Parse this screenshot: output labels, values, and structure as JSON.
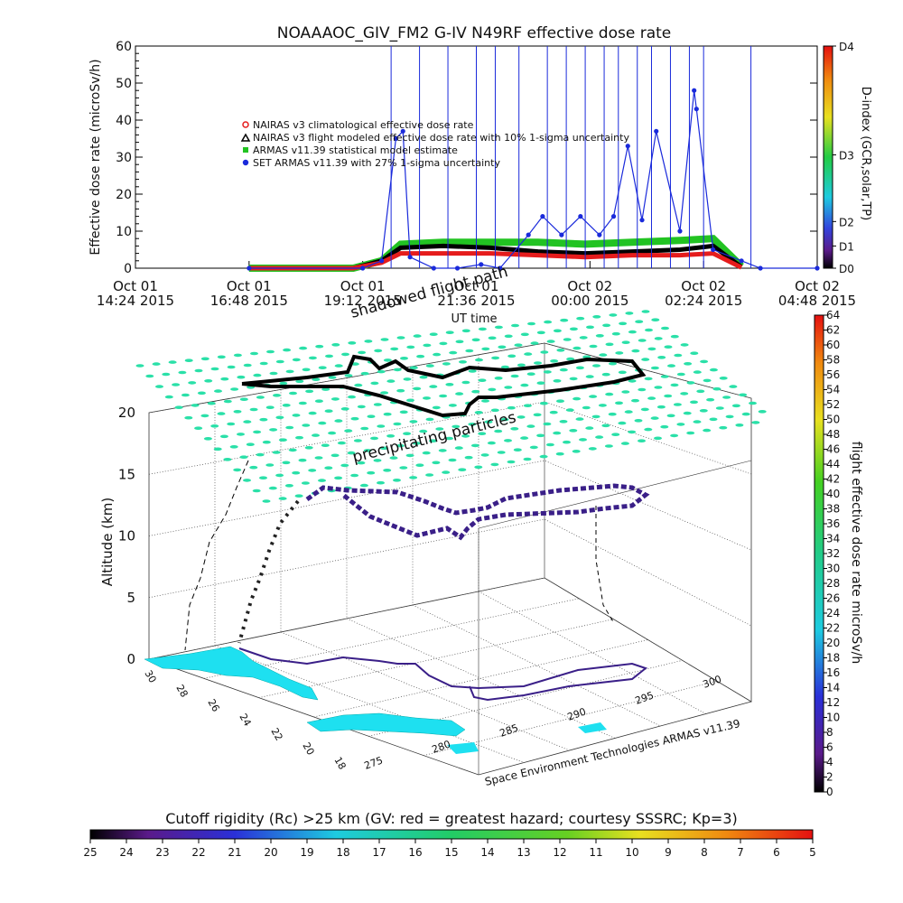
{
  "chart_data": [
    {
      "type": "line",
      "title": "NOAAAOC_GIV_FM2  G-IV    N49RF   effective dose rate",
      "xlabel": "UT time",
      "ylabel": "Effective dose rate (microSv/h)",
      "ylim": [
        0,
        60
      ],
      "yticks": [
        0,
        10,
        20,
        30,
        40,
        50,
        60
      ],
      "x_tick_labels": [
        [
          "Oct 01",
          "14:24 2015"
        ],
        [
          "Oct 01",
          "16:48 2015"
        ],
        [
          "Oct 01",
          "19:12 2015"
        ],
        [
          "Oct 01",
          "21:36 2015"
        ],
        [
          "Oct 02",
          "00:00 2015"
        ],
        [
          "Oct 02",
          "02:24 2015"
        ],
        [
          "Oct 02",
          "04:48 2015"
        ]
      ],
      "xlim_hours_after_1424": [
        0,
        14.4
      ],
      "legend": [
        {
          "label": "NAIRAS v3 climatological effective dose rate",
          "color": "#e51c1c",
          "marker": "circle-open"
        },
        {
          "label": "NAIRAS v3 flight modeled effective dose rate with 10% 1-sigma uncertainty",
          "color": "#000000",
          "marker": "triangle-open"
        },
        {
          "label": "ARMAS v11.39 statistical model estimate",
          "color": "#22c322",
          "marker": "square"
        },
        {
          "label": "SET ARMAS v11.39 with 27% 1-sigma uncertainty",
          "color": "#1a2adb",
          "marker": "circle"
        }
      ],
      "legend_position": "upper-left",
      "right_axis": {
        "label": "D-index (GCR,solar,TP)",
        "tick_labels": [
          "D0",
          "D1",
          "D2",
          "D3",
          "D4"
        ],
        "tick_fracs": [
          0.0,
          0.1,
          0.21,
          0.51,
          1.0
        ]
      },
      "series": [
        {
          "name": "ARMAS v11.39 statistical model estimate",
          "color": "#22c322",
          "points": [
            [
              2.4,
              0
            ],
            [
              4.6,
              0
            ],
            [
              5.2,
              2
            ],
            [
              5.6,
              6.5
            ],
            [
              6.5,
              7
            ],
            [
              7.5,
              7
            ],
            [
              8.5,
              7
            ],
            [
              9.5,
              6.5
            ],
            [
              10.5,
              7
            ],
            [
              11.5,
              7.5
            ],
            [
              12.2,
              8
            ],
            [
              12.8,
              0.5
            ]
          ]
        },
        {
          "name": "NAIRAS v3 flight modeled effective dose rate with 10% 1-sigma uncertainty",
          "color": "#000000",
          "points": [
            [
              2.4,
              0
            ],
            [
              4.6,
              0
            ],
            [
              5.2,
              2
            ],
            [
              5.6,
              5.5
            ],
            [
              6.5,
              6
            ],
            [
              7.5,
              5.5
            ],
            [
              8.5,
              4.5
            ],
            [
              9.5,
              4
            ],
            [
              10.5,
              4.5
            ],
            [
              11.5,
              5
            ],
            [
              12.2,
              6
            ],
            [
              12.8,
              0.3
            ]
          ]
        },
        {
          "name": "NAIRAS v3 climatological effective dose rate",
          "color": "#e51c1c",
          "points": [
            [
              2.4,
              0
            ],
            [
              4.6,
              0
            ],
            [
              5.2,
              1.5
            ],
            [
              5.6,
              4
            ],
            [
              6.5,
              4
            ],
            [
              7.5,
              4
            ],
            [
              8.5,
              3.5
            ],
            [
              9.5,
              3
            ],
            [
              10.5,
              3.5
            ],
            [
              11.5,
              3.5
            ],
            [
              12.2,
              4
            ],
            [
              12.8,
              0.2
            ]
          ]
        },
        {
          "name": "SET ARMAS v11.39 with 27% 1-sigma uncertainty",
          "color": "#1a2adb",
          "points": [
            [
              2.4,
              0
            ],
            [
              4.8,
              0
            ],
            [
              5.2,
              2
            ],
            [
              5.5,
              35
            ],
            [
              5.65,
              37
            ],
            [
              5.8,
              3
            ],
            [
              6.3,
              0
            ],
            [
              6.8,
              0
            ],
            [
              7.3,
              1
            ],
            [
              7.7,
              0
            ],
            [
              8.3,
              9
            ],
            [
              8.6,
              14
            ],
            [
              9.0,
              9
            ],
            [
              9.4,
              14
            ],
            [
              9.8,
              9
            ],
            [
              10.1,
              14
            ],
            [
              10.4,
              33
            ],
            [
              10.7,
              13
            ],
            [
              11.0,
              37
            ],
            [
              11.5,
              10
            ],
            [
              11.8,
              48
            ],
            [
              11.85,
              43
            ],
            [
              12.2,
              5
            ],
            [
              12.8,
              2
            ],
            [
              13.2,
              0
            ],
            [
              14.4,
              0
            ]
          ]
        }
      ]
    },
    {
      "type": "scatter3d",
      "title": "",
      "zlabel": "Altitude (km)",
      "zticks": [
        0,
        5,
        10,
        15,
        20
      ],
      "lat_tick_labels": [
        "30",
        "28",
        "26",
        "24",
        "22",
        "20",
        "18"
      ],
      "lon_tick_labels": [
        "275",
        "280",
        "285",
        "290",
        "295",
        "300"
      ],
      "annotations": [
        "shadowed flight path",
        "precipitating particles"
      ],
      "credit": "Space Environment Technologies ARMAS v11.39",
      "right_colorbar": {
        "label": "flight effective dose rate microSv/h",
        "min": 0,
        "max": 64,
        "step": 2
      },
      "bottom_colorbar": {
        "label": "Cutoff rigidity (Rc) >25 km (GV: red = greatest hazard; courtesy SSSRC; Kp=3)",
        "tick_labels": [
          "25",
          "24",
          "23",
          "22",
          "21",
          "20",
          "19",
          "18",
          "17",
          "16",
          "15",
          "14",
          "13",
          "12",
          "11",
          "10",
          "9",
          "8",
          "7",
          "6",
          "5"
        ]
      }
    }
  ]
}
